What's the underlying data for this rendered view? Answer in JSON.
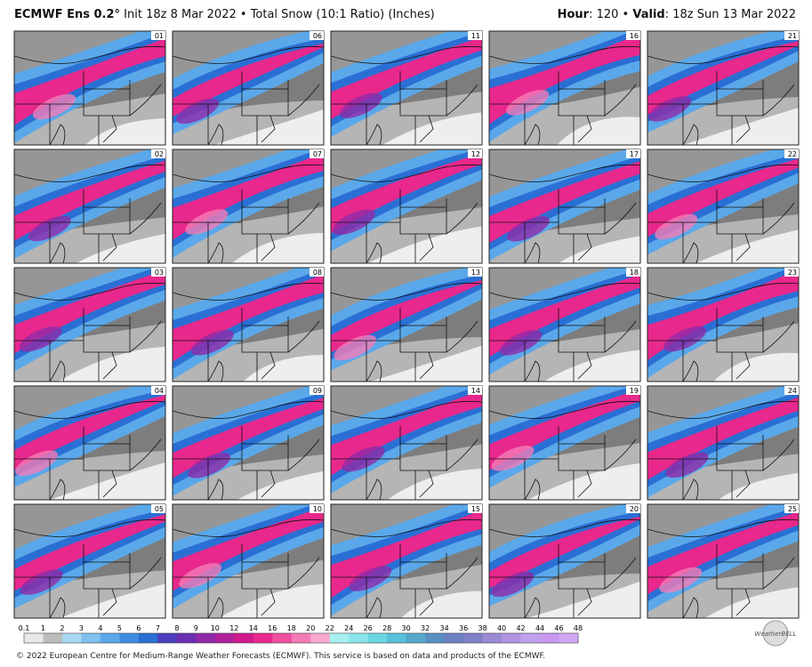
{
  "header": {
    "model": "ECMWF Ens 0.2°",
    "init": "Init 18z 8 Mar 2022",
    "separator": "•",
    "product": "Total Snow (10:1 Ratio) (Inches)",
    "hour_label": "Hour",
    "hour": ": 120",
    "valid_label": "Valid",
    "valid": ": 18z Sun 13 Mar 2022"
  },
  "panels": [
    "01",
    "06",
    "11",
    "16",
    "21",
    "02",
    "07",
    "12",
    "17",
    "22",
    "03",
    "08",
    "13",
    "18",
    "23",
    "04",
    "09",
    "14",
    "19",
    "24",
    "05",
    "10",
    "15",
    "20",
    "25"
  ],
  "colorbar": {
    "labels": [
      0.1,
      1,
      2,
      3,
      4,
      5,
      6,
      7,
      8,
      9,
      10,
      12,
      14,
      16,
      18,
      20,
      22,
      24,
      26,
      28,
      30,
      32,
      34,
      36,
      38,
      40,
      42,
      44,
      46,
      48
    ],
    "colors": [
      "#e8e8e8",
      "#bdbdbd",
      "#a8d8f0",
      "#7ec0ee",
      "#5aa8ea",
      "#3d8ee0",
      "#2a6fd4",
      "#4b3fbf",
      "#6a2fb0",
      "#8e2aa8",
      "#b0209a",
      "#d01a8c",
      "#e8288c",
      "#f050a0",
      "#f47cb6",
      "#f7a8cc",
      "#a8f0f0",
      "#88e6ea",
      "#6ad6e0",
      "#58c0d8",
      "#55a8cc",
      "#5890c4",
      "#6a80c0",
      "#8080c8",
      "#9a8ad4",
      "#b094e0",
      "#c0a0ec",
      "#c898f0",
      "#d0a8f6"
    ]
  },
  "footer": "© 2022 European Centre for Medium-Range Weather Forecasts (ECMWF). This service is based on data and products of the ECMWF.",
  "logo": "WeatherBELL"
}
